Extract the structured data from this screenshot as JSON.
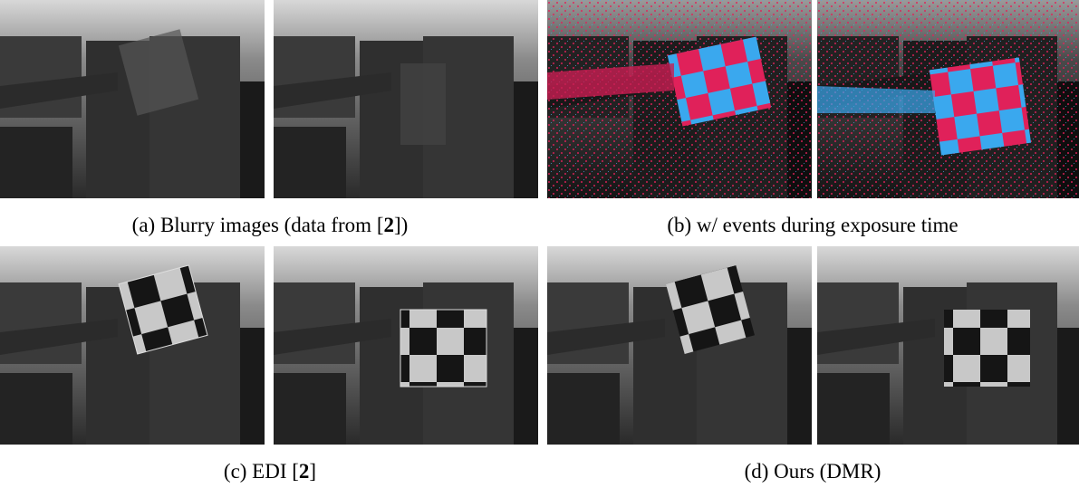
{
  "captions": [
    {
      "before": "(a) Blurry images (data from [",
      "ref": "2",
      "after": "])"
    },
    {
      "text": "(b) w/ events during exposure time"
    },
    {
      "before": "(c) EDI [",
      "ref": "2",
      "after": "]"
    },
    {
      "text": "(d) Ours (DMR)"
    }
  ]
}
